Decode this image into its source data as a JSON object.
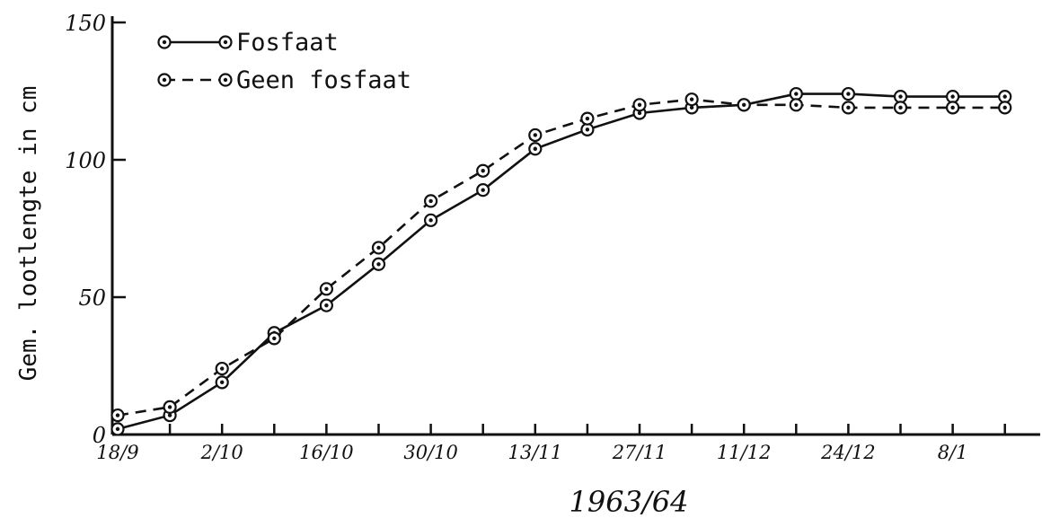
{
  "chart_data": {
    "type": "line",
    "title": "",
    "xlabel": "1963/64",
    "ylabel": "Gem. lootlengte in cm",
    "ylim": [
      0,
      150
    ],
    "yticks": [
      "0",
      "50",
      "100",
      "150"
    ],
    "x_tick_labels": [
      "18/9",
      "2/10",
      "16/10",
      "30/10",
      "13/11",
      "27/11",
      "11/12",
      "24/12",
      "8/1"
    ],
    "x_points": 18,
    "legend_position": "top-left",
    "series": [
      {
        "name": "Fosfaat",
        "style": "solid",
        "values": [
          2,
          7,
          19,
          37,
          47,
          62,
          78,
          89,
          104,
          111,
          117,
          119,
          120,
          124,
          124,
          123,
          123,
          123
        ]
      },
      {
        "name": "Geen fosfaat",
        "style": "dashed",
        "values": [
          7,
          10,
          24,
          35,
          53,
          68,
          85,
          96,
          109,
          115,
          120,
          122,
          120,
          120,
          119,
          119,
          119,
          119
        ]
      }
    ]
  }
}
